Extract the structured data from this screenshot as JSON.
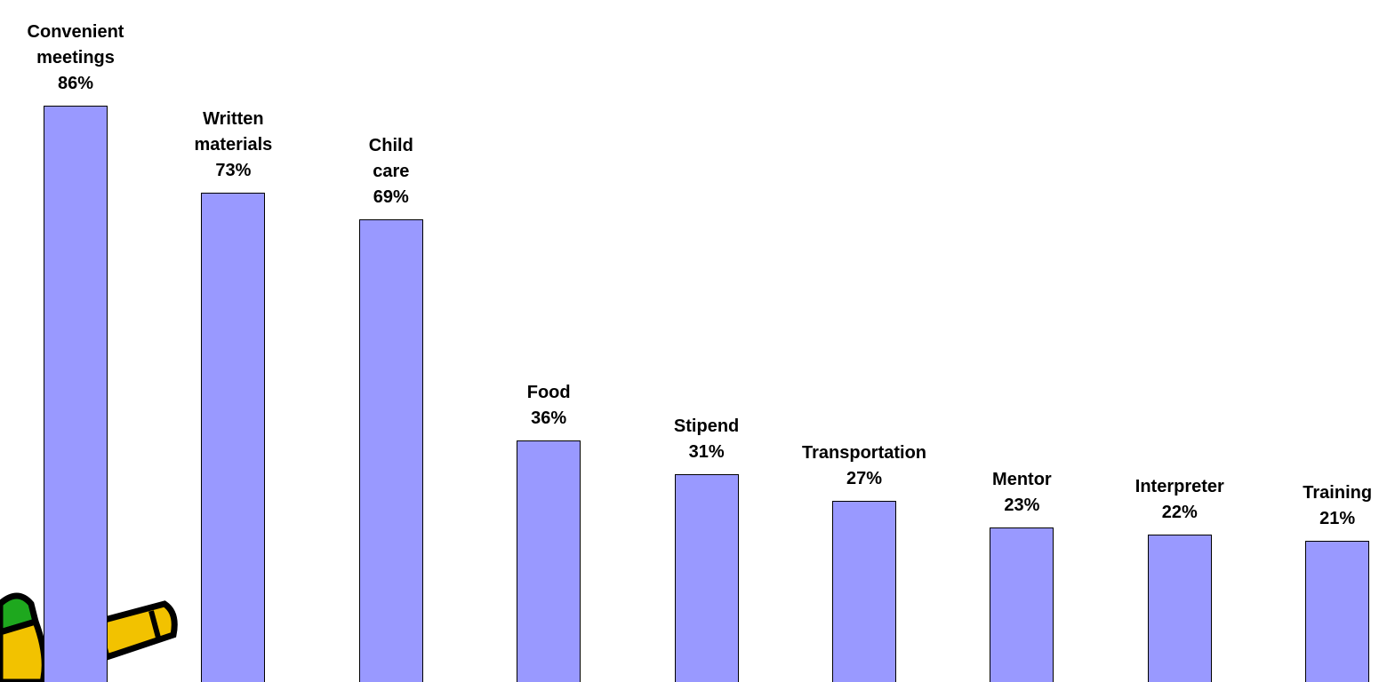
{
  "chart_data": {
    "type": "bar",
    "categories": [
      "Convenient meetings",
      "Written materials",
      "Child care",
      "Food",
      "Stipend",
      "Transportation",
      "Mentor",
      "Interpreter",
      "Training"
    ],
    "values": [
      86,
      73,
      69,
      36,
      31,
      27,
      23,
      22,
      21
    ],
    "value_labels": [
      "86%",
      "73%",
      "69%",
      "36%",
      "31%",
      "27%",
      "23%",
      "22%",
      "21%"
    ],
    "color": "#9999ff"
  }
}
